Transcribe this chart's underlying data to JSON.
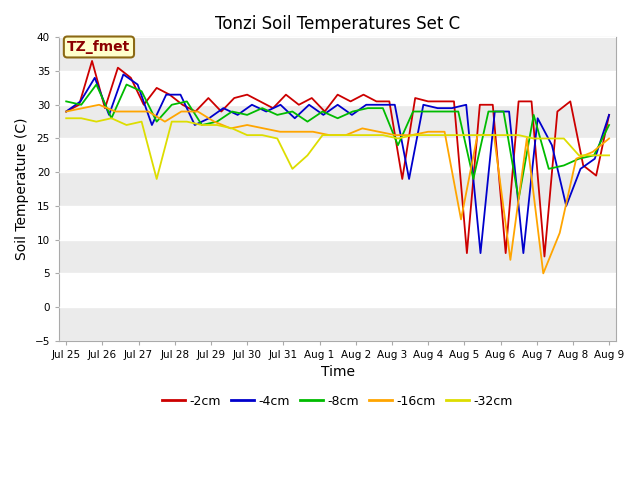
{
  "title": "Tonzi Soil Temperatures Set C",
  "xlabel": "Time",
  "ylabel": "Soil Temperature (C)",
  "ylim": [
    -5,
    40
  ],
  "yticks": [
    -5,
    0,
    5,
    10,
    15,
    20,
    25,
    30,
    35,
    40
  ],
  "annotation_label": "TZ_fmet",
  "annotation_color": "#8B0000",
  "annotation_bg": "#FFFFCC",
  "annotation_border": "#8B6914",
  "series_colors": {
    "-2cm": "#CC0000",
    "-4cm": "#0000CC",
    "-8cm": "#00BB00",
    "-16cm": "#FFA500",
    "-32cm": "#DDDD00"
  },
  "legend_labels": [
    "-2cm",
    "-4cm",
    "-8cm",
    "-16cm",
    "-32cm"
  ],
  "fig_facecolor": "#FFFFFF",
  "plot_facecolor": "#FFFFFF",
  "band_colors": [
    "#EBEBEB",
    "#FFFFFF"
  ],
  "x_labels": [
    "Jul 25",
    "Jul 26",
    "Jul 27",
    "Jul 28",
    "Jul 29",
    "Jul 30",
    "Jul 31",
    "Aug 1",
    "Aug 2",
    "Aug 3",
    "Aug 4",
    "Aug 5",
    "Aug 6",
    "Aug 7",
    "Aug 8",
    "Aug 9"
  ],
  "x_tick_positions": [
    0,
    1,
    2,
    3,
    4,
    5,
    6,
    7,
    8,
    9,
    10,
    11,
    12,
    13,
    14,
    15
  ],
  "data_2cm": [
    29.0,
    30.0,
    36.5,
    29.5,
    35.5,
    34.0,
    30.0,
    32.5,
    31.5,
    30.0,
    29.0,
    31.0,
    29.0,
    31.0,
    31.5,
    30.5,
    29.5,
    31.5,
    30.0,
    31.0,
    29.0,
    31.5,
    30.5,
    31.5,
    30.5,
    30.5,
    19.0,
    31.0,
    30.5,
    30.5,
    30.5,
    8.0,
    30.0,
    30.0,
    8.0,
    30.5,
    30.5,
    7.5,
    29.0,
    30.5,
    21.0,
    19.5,
    28.5
  ],
  "data_4cm": [
    29.0,
    30.5,
    34.0,
    28.5,
    34.5,
    33.0,
    27.0,
    31.5,
    31.5,
    27.0,
    28.0,
    29.5,
    28.5,
    30.0,
    29.0,
    30.0,
    28.0,
    30.0,
    28.5,
    30.0,
    28.5,
    30.0,
    30.0,
    30.0,
    19.0,
    30.0,
    29.5,
    29.5,
    30.0,
    8.0,
    29.0,
    29.0,
    8.0,
    28.0,
    24.0,
    15.0,
    20.5,
    22.0,
    28.5
  ],
  "data_8cm": [
    30.5,
    30.0,
    33.0,
    28.0,
    33.0,
    32.0,
    27.5,
    30.0,
    30.5,
    27.0,
    27.5,
    29.0,
    28.5,
    29.5,
    28.5,
    29.0,
    27.5,
    29.0,
    28.0,
    29.0,
    29.5,
    29.5,
    24.0,
    29.0,
    29.0,
    29.0,
    29.0,
    19.0,
    29.0,
    29.0,
    16.0,
    28.5,
    20.5,
    21.0,
    22.0,
    22.5,
    27.0
  ],
  "data_16cm": [
    29.0,
    29.5,
    30.0,
    29.0,
    29.0,
    29.0,
    27.5,
    29.0,
    29.0,
    27.5,
    26.5,
    27.0,
    26.5,
    26.0,
    26.0,
    26.0,
    25.5,
    25.5,
    26.5,
    26.0,
    25.5,
    25.5,
    26.0,
    26.0,
    13.0,
    25.5,
    25.5,
    7.0,
    25.0,
    5.0,
    11.0,
    22.0,
    23.0,
    25.0
  ],
  "data_32cm": [
    28.0,
    28.0,
    27.5,
    28.0,
    27.0,
    27.5,
    19.0,
    27.5,
    27.5,
    27.0,
    27.0,
    26.5,
    25.5,
    25.5,
    25.0,
    20.5,
    22.5,
    25.5,
    25.5,
    25.5,
    25.5,
    25.5,
    25.0,
    25.5,
    25.5,
    25.5,
    25.5,
    25.5,
    25.5,
    25.5,
    25.5,
    25.0,
    25.0,
    25.0,
    22.5,
    22.5,
    22.5
  ]
}
